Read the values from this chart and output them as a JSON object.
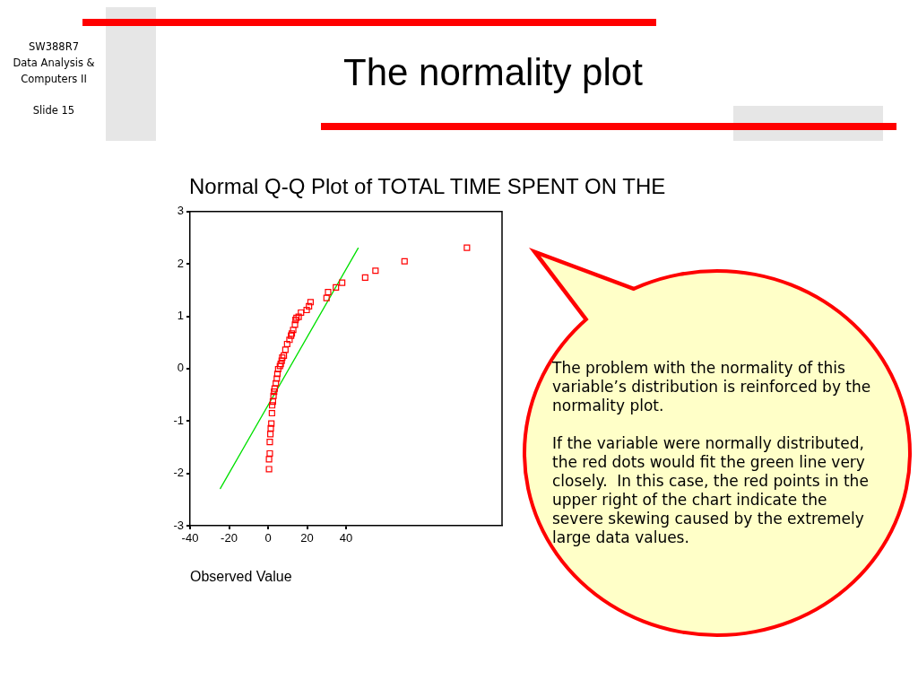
{
  "chart_data": {
    "type": "scatter",
    "title": "The normality plot",
    "subtitle": "Normal Q-Q Plot of TOTAL TIME SPENT ON THE",
    "xlabel": "Observed Value",
    "annotations": [
      "SW388R7\nData Analysis &\nComputers II",
      "Slide 15",
      "The problem with the normality of this variable’s distribution is reinforced by the normality plot.",
      "If the variable were normally distributed, the red dots would fit the green line very closely.  In this case, the red points in the upper right of the chart indicate the severe skewing caused by the extremely large data values."
    ],
    "series": [
      {
        "type": "scatter",
        "color": "#ff0000",
        "marker": "square",
        "x": [
          0.5,
          0.5,
          0.9,
          0.9,
          1.2,
          1.4,
          1.7,
          2.0,
          2.1,
          2.5,
          2.8,
          3.1,
          3.4,
          4.0,
          4.5,
          4.8,
          5.2,
          6.1,
          6.5,
          7.0,
          7.3,
          8.1,
          8.9,
          9.8,
          11.0,
          11.8,
          12.2,
          12.9,
          13.8,
          14.1,
          14.6,
          15.7,
          16.9,
          19.8,
          21.0,
          21.8,
          30.0,
          30.8,
          34.8,
          38.0,
          49.8,
          55.1,
          70.0,
          102.0
        ],
        "values": [
          -1.92,
          -1.73,
          -1.62,
          -1.4,
          -1.25,
          -1.14,
          -1.05,
          -0.85,
          -0.7,
          -0.63,
          -0.52,
          -0.44,
          -0.38,
          -0.28,
          -0.19,
          -0.1,
          -0.01,
          0.05,
          0.09,
          0.15,
          0.21,
          0.25,
          0.36,
          0.47,
          0.55,
          0.63,
          0.67,
          0.74,
          0.84,
          0.93,
          0.97,
          0.99,
          1.07,
          1.12,
          1.19,
          1.27,
          1.35,
          1.46,
          1.55,
          1.64,
          1.74,
          1.87,
          2.05,
          2.31
        ]
      },
      {
        "type": "line",
        "color": "#00e000",
        "marker": "none",
        "x": [
          -24.5,
          46.2
        ],
        "values": [
          -2.29,
          2.3
        ]
      }
    ],
    "xlim": [
      -40,
      120
    ],
    "ylim": [
      -3,
      3
    ],
    "xticks": [
      -40,
      -20,
      0,
      20,
      40
    ],
    "yticks": [
      -3,
      -2,
      -1,
      0,
      1,
      2,
      3
    ],
    "grid": false,
    "legend": false
  }
}
